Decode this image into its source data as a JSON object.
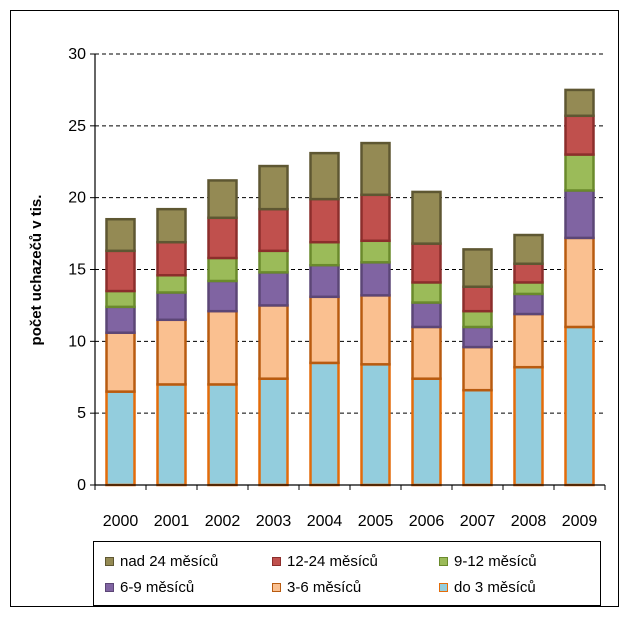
{
  "chart_data": {
    "type": "bar",
    "stacked": true,
    "categories": [
      "2000",
      "2001",
      "2002",
      "2003",
      "2004",
      "2005",
      "2006",
      "2007",
      "2008",
      "2009"
    ],
    "ylabel": "počet uchazečů v tis.",
    "ylim": [
      0,
      30
    ],
    "yticks": [
      "0",
      "5",
      "10",
      "15",
      "20",
      "25",
      "30"
    ],
    "grid": true,
    "legend_position": "bottom",
    "series": [
      {
        "name": "do 3 měsíců",
        "color": "#93CDDD",
        "edge": "#E46C0A",
        "values": [
          6.5,
          7.0,
          7.0,
          7.4,
          8.5,
          8.4,
          7.4,
          6.6,
          8.2,
          11.0
        ]
      },
      {
        "name": "3-6 měsíců",
        "color": "#FAC090",
        "edge": "#B85B10",
        "values": [
          4.1,
          4.5,
          5.1,
          5.1,
          4.6,
          4.8,
          3.6,
          3.0,
          3.7,
          6.2
        ]
      },
      {
        "name": "6-9 měsíců",
        "color": "#8064A2",
        "edge": "#5C4676",
        "values": [
          1.8,
          1.9,
          2.1,
          2.3,
          2.2,
          2.3,
          1.7,
          1.4,
          1.4,
          3.3
        ]
      },
      {
        "name": "9-12 měsíců",
        "color": "#9BBB59",
        "edge": "#6A8A2C",
        "values": [
          1.1,
          1.2,
          1.6,
          1.5,
          1.6,
          1.5,
          1.4,
          1.1,
          0.8,
          2.5
        ]
      },
      {
        "name": "12-24 měsíců",
        "color": "#C0504D",
        "edge": "#8C2E2C",
        "values": [
          2.8,
          2.3,
          2.8,
          2.9,
          3.0,
          3.2,
          2.7,
          1.7,
          1.3,
          2.7
        ]
      },
      {
        "name": "nad 24 měsíců",
        "color": "#948A54",
        "edge": "#5E5732",
        "values": [
          2.2,
          2.3,
          2.6,
          3.0,
          3.2,
          3.6,
          3.6,
          2.6,
          2.0,
          1.8
        ]
      }
    ],
    "legend_order": [
      "nad 24 měsíců",
      "12-24 měsíců",
      "9-12 měsíců",
      "6-9 měsíců",
      "3-6 měsíců",
      "do 3 měsíců"
    ]
  }
}
